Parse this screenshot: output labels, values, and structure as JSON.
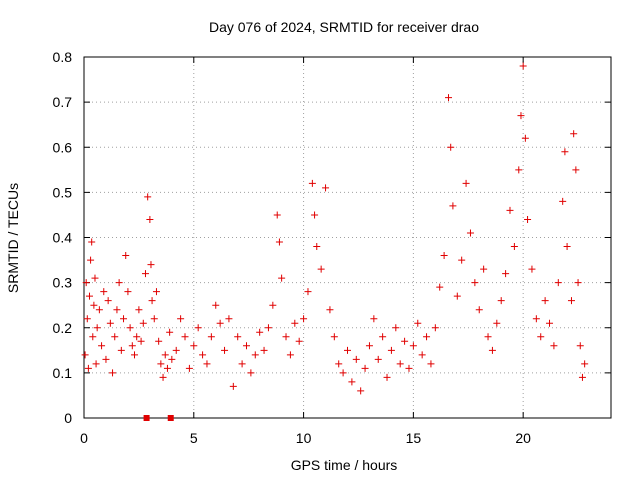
{
  "chart_data": {
    "type": "scatter",
    "title": "Day 076 of 2024, SRMTID for receiver drao",
    "xlabel": "GPS time / hours",
    "ylabel": "SRMTID / TECUs",
    "xlim": [
      0,
      24
    ],
    "ylim": [
      0,
      0.8
    ],
    "xticks": [
      0,
      5,
      10,
      15,
      20
    ],
    "xtick_labels": [
      "0",
      "5",
      "10",
      "15",
      "20"
    ],
    "yticks": [
      0,
      0.1,
      0.2,
      0.3,
      0.4,
      0.5,
      0.6,
      0.7,
      0.8
    ],
    "ytick_labels": [
      "0",
      "0.1",
      "0.2",
      "0.3",
      "0.4",
      "0.5",
      "0.6",
      "0.7",
      "0.8"
    ],
    "grid": true,
    "marker": "plus",
    "color": "#e00000",
    "series": [
      {
        "name": "SRMTID",
        "points": [
          [
            0.05,
            0.14
          ],
          [
            0.1,
            0.3
          ],
          [
            0.15,
            0.22
          ],
          [
            0.2,
            0.11
          ],
          [
            0.25,
            0.27
          ],
          [
            0.3,
            0.35
          ],
          [
            0.35,
            0.39
          ],
          [
            0.4,
            0.18
          ],
          [
            0.45,
            0.25
          ],
          [
            0.5,
            0.31
          ],
          [
            0.55,
            0.12
          ],
          [
            0.6,
            0.2
          ],
          [
            0.7,
            0.24
          ],
          [
            0.8,
            0.16
          ],
          [
            0.9,
            0.28
          ],
          [
            1.0,
            0.13
          ],
          [
            1.1,
            0.26
          ],
          [
            1.2,
            0.21
          ],
          [
            1.3,
            0.1
          ],
          [
            1.4,
            0.18
          ],
          [
            1.5,
            0.24
          ],
          [
            1.6,
            0.3
          ],
          [
            1.7,
            0.15
          ],
          [
            1.8,
            0.22
          ],
          [
            1.9,
            0.36
          ],
          [
            2.0,
            0.28
          ],
          [
            2.1,
            0.2
          ],
          [
            2.2,
            0.16
          ],
          [
            2.3,
            0.14
          ],
          [
            2.4,
            0.18
          ],
          [
            2.5,
            0.24
          ],
          [
            2.6,
            0.17
          ],
          [
            2.7,
            0.21
          ],
          [
            2.8,
            0.32
          ],
          [
            2.9,
            0.49
          ],
          [
            3.0,
            0.44
          ],
          [
            3.05,
            0.34
          ],
          [
            3.1,
            0.26
          ],
          [
            3.2,
            0.22
          ],
          [
            3.3,
            0.28
          ],
          [
            3.4,
            0.17
          ],
          [
            3.5,
            0.12
          ],
          [
            3.6,
            0.09
          ],
          [
            3.7,
            0.14
          ],
          [
            3.8,
            0.11
          ],
          [
            3.9,
            0.19
          ],
          [
            4.0,
            0.13
          ],
          [
            4.2,
            0.15
          ],
          [
            4.4,
            0.22
          ],
          [
            4.6,
            0.18
          ],
          [
            4.8,
            0.11
          ],
          [
            5.0,
            0.16
          ],
          [
            5.2,
            0.2
          ],
          [
            5.4,
            0.14
          ],
          [
            5.6,
            0.12
          ],
          [
            5.8,
            0.18
          ],
          [
            6.0,
            0.25
          ],
          [
            6.2,
            0.21
          ],
          [
            6.4,
            0.15
          ],
          [
            6.6,
            0.22
          ],
          [
            6.8,
            0.07
          ],
          [
            7.0,
            0.18
          ],
          [
            7.2,
            0.12
          ],
          [
            7.4,
            0.16
          ],
          [
            7.6,
            0.1
          ],
          [
            7.8,
            0.14
          ],
          [
            8.0,
            0.19
          ],
          [
            8.2,
            0.15
          ],
          [
            8.4,
            0.2
          ],
          [
            8.6,
            0.25
          ],
          [
            8.8,
            0.45
          ],
          [
            8.9,
            0.39
          ],
          [
            9.0,
            0.31
          ],
          [
            9.2,
            0.18
          ],
          [
            9.4,
            0.14
          ],
          [
            9.6,
            0.21
          ],
          [
            9.8,
            0.17
          ],
          [
            10.0,
            0.22
          ],
          [
            10.2,
            0.28
          ],
          [
            10.4,
            0.52
          ],
          [
            10.5,
            0.45
          ],
          [
            10.6,
            0.38
          ],
          [
            10.8,
            0.33
          ],
          [
            11.0,
            0.51
          ],
          [
            11.2,
            0.24
          ],
          [
            11.4,
            0.18
          ],
          [
            11.6,
            0.12
          ],
          [
            11.8,
            0.1
          ],
          [
            12.0,
            0.15
          ],
          [
            12.2,
            0.08
          ],
          [
            12.4,
            0.13
          ],
          [
            12.6,
            0.06
          ],
          [
            12.8,
            0.11
          ],
          [
            13.0,
            0.16
          ],
          [
            13.2,
            0.22
          ],
          [
            13.4,
            0.13
          ],
          [
            13.6,
            0.18
          ],
          [
            13.8,
            0.09
          ],
          [
            14.0,
            0.15
          ],
          [
            14.2,
            0.2
          ],
          [
            14.4,
            0.12
          ],
          [
            14.6,
            0.17
          ],
          [
            14.8,
            0.11
          ],
          [
            15.0,
            0.16
          ],
          [
            15.2,
            0.21
          ],
          [
            15.4,
            0.14
          ],
          [
            15.6,
            0.18
          ],
          [
            15.8,
            0.12
          ],
          [
            16.0,
            0.2
          ],
          [
            16.2,
            0.29
          ],
          [
            16.4,
            0.36
          ],
          [
            16.6,
            0.71
          ],
          [
            16.7,
            0.6
          ],
          [
            16.8,
            0.47
          ],
          [
            17.0,
            0.27
          ],
          [
            17.2,
            0.35
          ],
          [
            17.4,
            0.52
          ],
          [
            17.6,
            0.41
          ],
          [
            17.8,
            0.3
          ],
          [
            18.0,
            0.24
          ],
          [
            18.2,
            0.33
          ],
          [
            18.4,
            0.18
          ],
          [
            18.6,
            0.15
          ],
          [
            18.8,
            0.21
          ],
          [
            19.0,
            0.26
          ],
          [
            19.2,
            0.32
          ],
          [
            19.4,
            0.46
          ],
          [
            19.6,
            0.38
          ],
          [
            19.8,
            0.55
          ],
          [
            19.9,
            0.67
          ],
          [
            20.0,
            0.78
          ],
          [
            20.1,
            0.62
          ],
          [
            20.2,
            0.44
          ],
          [
            20.4,
            0.33
          ],
          [
            20.6,
            0.22
          ],
          [
            20.8,
            0.18
          ],
          [
            21.0,
            0.26
          ],
          [
            21.2,
            0.21
          ],
          [
            21.4,
            0.16
          ],
          [
            21.6,
            0.3
          ],
          [
            21.8,
            0.48
          ],
          [
            21.9,
            0.59
          ],
          [
            22.0,
            0.38
          ],
          [
            22.2,
            0.26
          ],
          [
            22.3,
            0.63
          ],
          [
            22.4,
            0.55
          ],
          [
            22.5,
            0.3
          ],
          [
            22.6,
            0.16
          ],
          [
            22.7,
            0.09
          ],
          [
            22.8,
            0.12
          ]
        ]
      }
    ],
    "xaxis_markers": [
      2.85,
      3.95
    ]
  }
}
